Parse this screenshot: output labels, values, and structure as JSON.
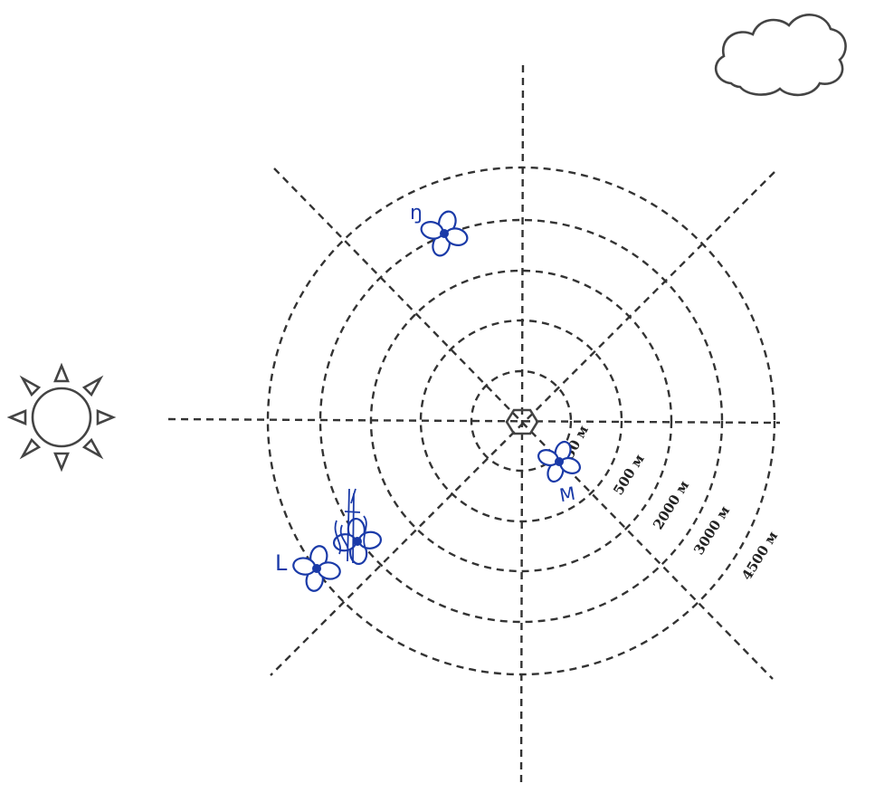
{
  "diagram": {
    "ring_labels": [
      "50 м",
      "500 м",
      "2000 м",
      "3000 м",
      "4500 м"
    ],
    "markers": [
      {
        "label": "ŋ"
      },
      {
        "label": "M"
      },
      {
        "label": "L"
      }
    ],
    "colors": {
      "ink": "#333333",
      "marker": "#1a3aa8"
    },
    "icons": [
      "sun-icon",
      "cloud-icon",
      "hexagon-icon",
      "flower-icon"
    ]
  }
}
